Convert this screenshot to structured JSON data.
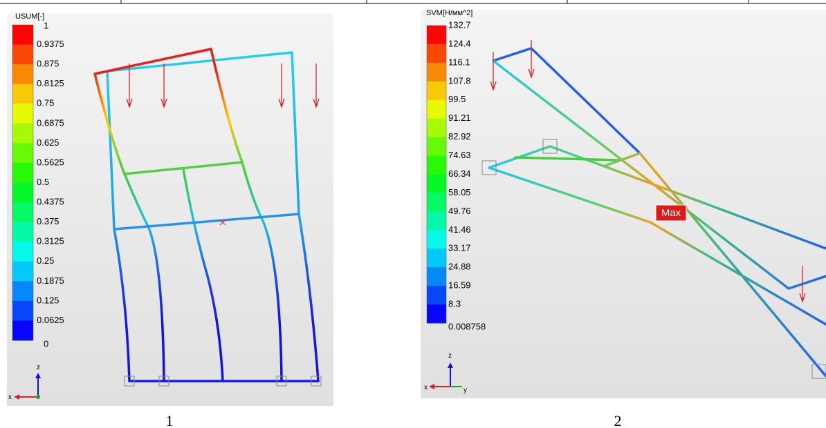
{
  "figures": [
    {
      "legend_title": "USUM[-]",
      "legend_labels": [
        "1",
        "0.9375",
        "0.875",
        "0.8125",
        "0.75",
        "0.6875",
        "0.625",
        "0.5625",
        "0.5",
        "0.4375",
        "0.375",
        "0.3125",
        "0.25",
        "0.1875",
        "0.125",
        "0.0625",
        "0"
      ],
      "axis_labels": {
        "z": "z",
        "x": "x"
      },
      "caption": "1"
    },
    {
      "legend_title": "SVM[Н/мм^2]",
      "legend_labels": [
        "132.7",
        "124.4",
        "116.1",
        "107.8",
        "99.5",
        "91.21",
        "82.92",
        "74.63",
        "66.34",
        "58.05",
        "49.76",
        "41.46",
        "33.17",
        "24.88",
        "16.59",
        "8.3",
        "0.008758"
      ],
      "marker": "Max",
      "axis_labels": {
        "z": "z",
        "x": "x",
        "y": "y"
      },
      "caption": "2"
    }
  ]
}
